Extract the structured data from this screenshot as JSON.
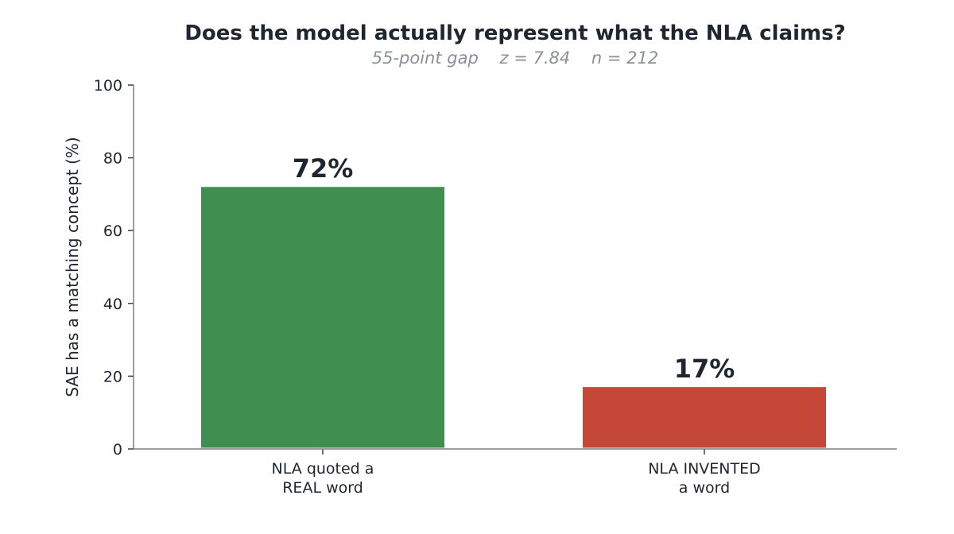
{
  "chart_data": {
    "type": "bar",
    "title": "Does the model actually represent what the NLA claims?",
    "subtitle": "55-point gap    z = 7.84    n = 212",
    "xlabel": "",
    "ylabel": "SAE has a matching concept (%)",
    "ylim": [
      0,
      100
    ],
    "yticks": [
      0,
      20,
      40,
      60,
      80,
      100
    ],
    "categories": [
      "NLA quoted a\nREAL word",
      "NLA INVENTED\na word"
    ],
    "values": [
      72,
      17
    ],
    "data_labels": [
      "72%",
      "17%"
    ],
    "colors": [
      "#3f8f50",
      "#c44737"
    ],
    "grid": false,
    "legend": "none"
  }
}
